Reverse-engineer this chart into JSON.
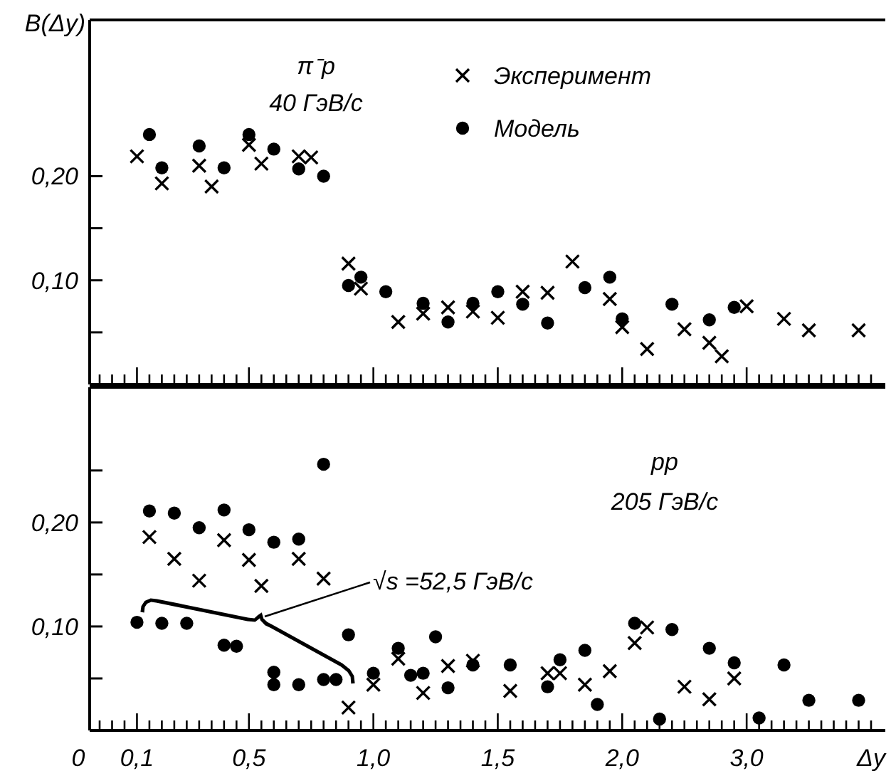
{
  "chart_data": [
    {
      "type": "scatter",
      "ylabel": "B(Δy)",
      "ylim": [
        0,
        0.35
      ],
      "yticks": [
        {
          "value": 0.05,
          "label": null
        },
        {
          "value": 0.1,
          "label": "0,10"
        },
        {
          "value": 0.15,
          "label": null
        },
        {
          "value": 0.2,
          "label": "0,20"
        }
      ],
      "tick_labels": "y",
      "legend": "top right",
      "annotations": [
        "π⁻p",
        "40 ГэВ/с"
      ],
      "categories": [
        null,
        null,
        null,
        "0,1",
        null,
        null,
        null,
        null,
        null,
        null,
        null,
        null,
        "0,5",
        null,
        null,
        null,
        null,
        null,
        null,
        null,
        null,
        null,
        "1,0",
        null,
        null,
        null,
        null,
        null,
        null,
        null,
        null,
        null,
        "1,5",
        null,
        null,
        null,
        null,
        null,
        null,
        null,
        null,
        null,
        "2,0",
        null,
        null,
        null,
        null,
        null,
        null,
        null,
        null,
        null,
        "3,0",
        null,
        null,
        null,
        null,
        null,
        null,
        null,
        null,
        null,
        null
      ],
      "series": [
        {
          "name": "Эксперимент",
          "color": "#000000",
          "marker": "cross",
          "values": [
            null,
            null,
            null,
            0.219,
            null,
            0.193,
            null,
            null,
            0.21,
            0.19,
            null,
            null,
            0.23,
            0.212,
            null,
            null,
            0.219,
            0.218,
            null,
            null,
            0.116,
            0.092,
            null,
            null,
            0.06,
            null,
            0.068,
            null,
            0.074,
            null,
            0.07,
            null,
            0.064,
            null,
            0.089,
            null,
            0.088,
            null,
            0.118,
            null,
            null,
            0.082,
            0.055,
            null,
            0.034,
            null,
            null,
            0.053,
            null,
            0.04,
            0.027,
            null,
            0.075,
            null,
            null,
            0.063,
            null,
            0.052,
            null,
            null,
            null,
            0.052,
            null
          ]
        },
        {
          "name": "Модель",
          "color": "#000000",
          "marker": "circle",
          "values": [
            null,
            null,
            null,
            null,
            0.24,
            0.208,
            null,
            null,
            0.229,
            null,
            0.208,
            null,
            0.24,
            null,
            0.226,
            null,
            0.207,
            null,
            0.2,
            null,
            0.095,
            0.103,
            null,
            0.089,
            null,
            null,
            0.078,
            null,
            0.06,
            null,
            0.078,
            null,
            0.089,
            null,
            0.077,
            null,
            0.059,
            null,
            null,
            0.093,
            null,
            0.103,
            0.063,
            null,
            null,
            null,
            0.077,
            null,
            null,
            0.062,
            null,
            0.074,
            null,
            null,
            null,
            null,
            null,
            null,
            null,
            null,
            null,
            null,
            null
          ]
        }
      ]
    },
    {
      "type": "scatter",
      "xlabel": "Δy",
      "ylim": [
        0,
        0.33
      ],
      "yticks": [
        {
          "value": 0.05,
          "label": null
        },
        {
          "value": 0.1,
          "label": "0,10"
        },
        {
          "value": 0.15,
          "label": null
        },
        {
          "value": 0.2,
          "label": "0,20"
        },
        {
          "value": 0.25,
          "label": null
        }
      ],
      "annotations": [
        "pp",
        "205 ГэВ/с",
        "√s =52,5 ГэВ/с",
        "0"
      ],
      "categories": [
        null,
        null,
        null,
        "0,1",
        null,
        null,
        null,
        null,
        null,
        null,
        null,
        null,
        "0,5",
        null,
        null,
        null,
        null,
        null,
        null,
        null,
        null,
        null,
        "1,0",
        null,
        null,
        null,
        null,
        null,
        null,
        null,
        null,
        null,
        "1,5",
        null,
        null,
        null,
        null,
        null,
        null,
        null,
        null,
        null,
        "2,0",
        null,
        null,
        null,
        null,
        null,
        null,
        null,
        null,
        null,
        "3,0",
        null,
        null,
        null,
        null,
        null,
        null,
        null,
        null,
        null,
        null
      ],
      "series": [
        {
          "color": "#000000",
          "marker": "cross",
          "values": [
            null,
            null,
            null,
            null,
            0.186,
            null,
            0.165,
            null,
            0.144,
            null,
            0.183,
            null,
            0.164,
            0.139,
            null,
            null,
            0.165,
            null,
            0.146,
            null,
            0.022,
            null,
            0.044,
            null,
            0.069,
            null,
            0.036,
            null,
            0.062,
            null,
            0.067,
            null,
            null,
            0.038,
            null,
            null,
            0.055,
            0.055,
            null,
            0.044,
            null,
            0.057,
            null,
            0.084,
            0.099,
            null,
            null,
            0.042,
            null,
            0.03,
            null,
            0.05,
            null,
            null,
            null,
            null,
            null,
            null,
            null,
            null,
            null,
            null,
            null
          ]
        },
        {
          "color": "#000000",
          "marker": "circle",
          "values": [
            null,
            null,
            null,
            null,
            0.211,
            null,
            0.209,
            null,
            0.195,
            null,
            0.212,
            null,
            0.193,
            null,
            0.181,
            null,
            0.184,
            null,
            0.256,
            null,
            0.092,
            null,
            0.055,
            null,
            0.079,
            0.053,
            0.055,
            0.09,
            0.041,
            null,
            0.063,
            null,
            null,
            0.063,
            null,
            null,
            0.042,
            0.068,
            null,
            0.077,
            0.025,
            null,
            null,
            0.103,
            null,
            0.011,
            0.097,
            null,
            null,
            0.079,
            null,
            0.065,
            null,
            0.012,
            null,
            0.063,
            null,
            0.029,
            null,
            null,
            null,
            0.029,
            null
          ]
        },
        {
          "color": "#000000",
          "marker": "circle",
          "values": [
            null,
            null,
            null,
            0.104,
            null,
            0.103,
            null,
            0.103,
            null,
            null,
            0.082,
            0.081,
            null,
            null,
            0.056,
            null,
            0.044,
            null,
            0.049,
            0.049,
            null,
            null,
            null,
            null,
            null,
            null,
            null,
            null,
            null,
            null,
            null,
            null,
            null,
            null,
            null,
            null,
            null,
            null,
            null,
            null,
            null,
            null,
            null,
            null,
            null,
            null,
            null,
            null,
            null,
            null,
            null,
            null,
            null,
            null,
            null,
            null,
            null,
            null,
            null,
            null,
            null,
            null,
            null
          ]
        },
        {
          "color": "#000000",
          "marker": "circle",
          "values": [
            null,
            null,
            null,
            null,
            null,
            null,
            null,
            null,
            null,
            null,
            null,
            null,
            null,
            null,
            0.044,
            null,
            null,
            null,
            null,
            null,
            null,
            null,
            null,
            null,
            null,
            null,
            null,
            null,
            null,
            null,
            null,
            null,
            null,
            null,
            null,
            null,
            null,
            null,
            null,
            null,
            null,
            null,
            null,
            null,
            null,
            null,
            null,
            null,
            null,
            null,
            null,
            null,
            null,
            null,
            null,
            null,
            null,
            null,
            null,
            null,
            null,
            null,
            null
          ]
        }
      ]
    }
  ]
}
